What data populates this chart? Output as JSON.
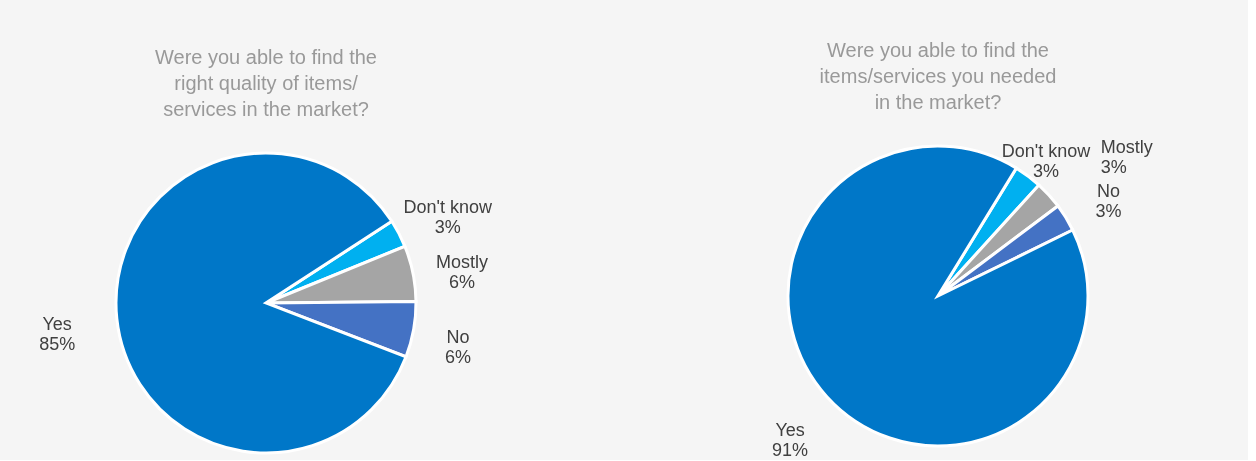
{
  "chart_data": [
    {
      "type": "pie",
      "title": "Were you able to find the\nright quality of items/\nservices in the market?",
      "categories": [
        "Don't know",
        "Mostly",
        "No",
        "Yes"
      ],
      "values": [
        3,
        6,
        6,
        85
      ],
      "value_labels": [
        "3%",
        "6%",
        "6%",
        "85%"
      ],
      "colors": [
        "#00b0f0",
        "#a5a5a5",
        "#4472c4",
        "#0077c8"
      ],
      "legend": false
    },
    {
      "type": "pie",
      "title": "Were you able to find the\nitems/services you needed\nin the market?",
      "categories": [
        "Don't know",
        "Mostly",
        "No",
        "Yes"
      ],
      "values": [
        3,
        3,
        3,
        91
      ],
      "value_labels": [
        "3%",
        "3%",
        "3%",
        "91%"
      ],
      "colors": [
        "#00b0f0",
        "#a5a5a5",
        "#4472c4",
        "#0077c8"
      ],
      "legend": false
    }
  ]
}
